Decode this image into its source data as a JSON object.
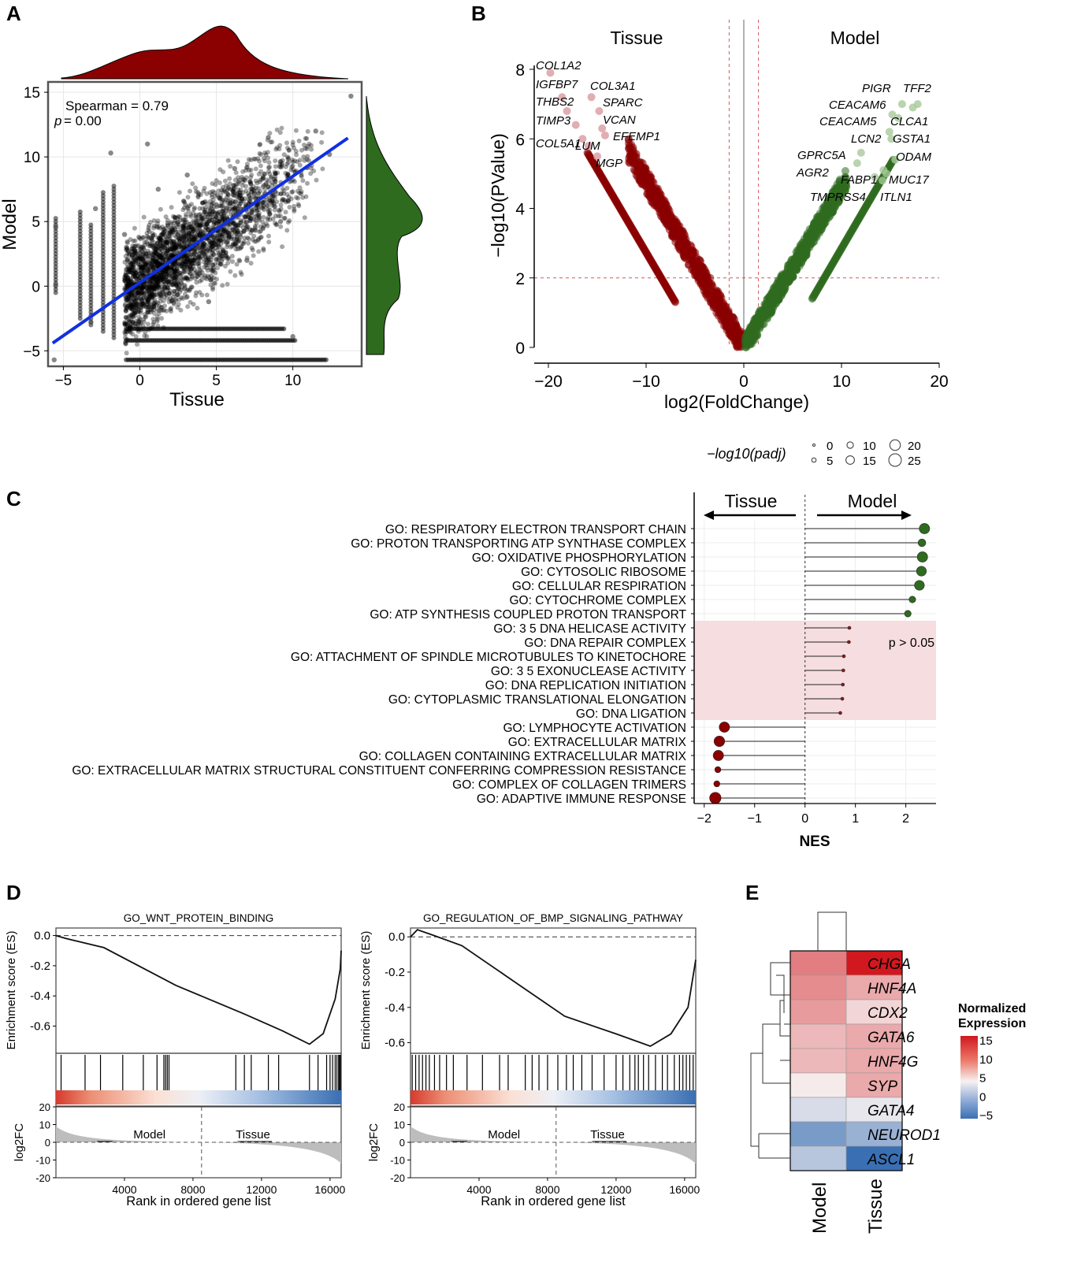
{
  "panels": {
    "a": "A",
    "b": "B",
    "c": "C",
    "d": "D",
    "e": "E"
  },
  "colors": {
    "tissue": "#8b0000",
    "model": "#2f6b1f",
    "fit": "#1030e0",
    "ns": "#f6dde0",
    "hot": "#d0181e",
    "cold": "#3a6fb3"
  },
  "chart_data": [
    {
      "id": "A",
      "type": "scatter",
      "xlabel": "Tissue",
      "ylabel": "Model",
      "xlim": [
        -6,
        14.5
      ],
      "ylim": [
        -6.2,
        15.8
      ],
      "xticks": [
        -5,
        0,
        5,
        10
      ],
      "yticks": [
        -5,
        0,
        5,
        10,
        15
      ],
      "annotation": {
        "text": "Spearman = 0.79",
        "p_label": "p",
        "p_value": "= 0.00"
      },
      "regression": {
        "intercept": 0.28,
        "slope": 0.822
      },
      "sample_points": [
        [
          -5.6,
          -5.7
        ],
        [
          -5.5,
          0.1
        ],
        [
          -5.5,
          4.6
        ],
        [
          -3.2,
          -2.8
        ],
        [
          -2.9,
          6.0
        ],
        [
          -1.9,
          10.3
        ],
        [
          -1.0,
          4.0
        ],
        [
          0.5,
          11.0
        ],
        [
          1.2,
          7.5
        ],
        [
          2.0,
          1.1
        ],
        [
          3.1,
          8.6
        ],
        [
          3.8,
          3.0
        ],
        [
          4.5,
          -1.2
        ],
        [
          5.0,
          6.3
        ],
        [
          6.2,
          9.1
        ],
        [
          7.0,
          2.0
        ],
        [
          8.4,
          11.5
        ],
        [
          9.2,
          5.0
        ],
        [
          10.0,
          -3.9
        ],
        [
          11.5,
          12.0
        ],
        [
          12.4,
          10.2
        ],
        [
          13.8,
          14.7
        ]
      ],
      "floor_levels": [
        -3.3,
        -4.2,
        -5.7
      ],
      "top_density_label": "Tissue density",
      "right_density_label": "Model density"
    },
    {
      "id": "B",
      "type": "scatter",
      "xlabel": "log2(FoldChange)",
      "ylabel": "−log10(PValue)",
      "xlim": [
        -20,
        20
      ],
      "ylim": [
        0,
        8
      ],
      "xticks": [
        -20,
        -10,
        0,
        10,
        20
      ],
      "xtick_labels": [
        "−20",
        "−10",
        "0",
        "10",
        "20"
      ],
      "yticks": [
        0,
        2,
        4,
        6,
        8
      ],
      "group_labels": [
        "Tissue",
        "Model"
      ],
      "thresholds": {
        "fc": 1.5,
        "pvalue": 2
      },
      "labels_tissue": [
        {
          "gene": "COL1A2",
          "x": -19.8,
          "y": 7.9
        },
        {
          "gene": "IGFBP7",
          "x": -18.6,
          "y": 7.2
        },
        {
          "gene": "THBS2",
          "x": -18.1,
          "y": 6.8
        },
        {
          "gene": "TIMP3",
          "x": -17.2,
          "y": 6.4
        },
        {
          "gene": "COL5A1",
          "x": -16.5,
          "y": 6.0
        },
        {
          "gene": "LUM",
          "x": -15.9,
          "y": 5.8
        },
        {
          "gene": "MGP",
          "x": -15.0,
          "y": 5.5
        },
        {
          "gene": "COL3A1",
          "x": -15.6,
          "y": 7.2
        },
        {
          "gene": "SPARC",
          "x": -14.8,
          "y": 6.8
        },
        {
          "gene": "VCAN",
          "x": -14.5,
          "y": 6.3
        },
        {
          "gene": "EFEMP1",
          "x": -14.2,
          "y": 6.1
        }
      ],
      "labels_model": [
        {
          "gene": "PIGR",
          "x": 16.2,
          "y": 7.0
        },
        {
          "gene": "TFF2",
          "x": 17.8,
          "y": 7.0
        },
        {
          "gene": "CEACAM6",
          "x": 17.3,
          "y": 6.9
        },
        {
          "gene": "CEACAM5",
          "x": 15.2,
          "y": 6.7
        },
        {
          "gene": "CLCA1",
          "x": 15.8,
          "y": 6.6
        },
        {
          "gene": "LCN2",
          "x": 14.9,
          "y": 6.2
        },
        {
          "gene": "GSTA1",
          "x": 15.1,
          "y": 6.0
        },
        {
          "gene": "GPRC5A",
          "x": 12.0,
          "y": 5.6
        },
        {
          "gene": "ODAM",
          "x": 15.5,
          "y": 5.4
        },
        {
          "gene": "AGR2",
          "x": 11.6,
          "y": 5.3
        },
        {
          "gene": "FABP1",
          "x": 14.3,
          "y": 5.1
        },
        {
          "gene": "MUC17",
          "x": 14.6,
          "y": 5.0
        },
        {
          "gene": "TMPRSS4",
          "x": 13.4,
          "y": 4.9
        },
        {
          "gene": "ITLN1",
          "x": 14.2,
          "y": 4.8
        }
      ]
    },
    {
      "id": "C",
      "type": "lollipop",
      "xlabel": "NES",
      "xlim": [
        -2.2,
        2.6
      ],
      "xticks": [
        -2,
        -1,
        0,
        1,
        2
      ],
      "xtick_labels": [
        "−2",
        "−1",
        "0",
        "1",
        "2"
      ],
      "direction_labels": [
        "Tissue",
        "Model"
      ],
      "ns_label": "p > 0.05",
      "size_legend": {
        "title": "−log10(padj)",
        "values": [
          0,
          5,
          10,
          15,
          20,
          25
        ]
      },
      "terms": [
        {
          "name": "GO: RESPIRATORY ELECTRON TRANSPORT CHAIN",
          "nes": 2.37,
          "padj": 24,
          "sig": true
        },
        {
          "name": "GO: PROTON TRANSPORTING ATP SYNTHASE COMPLEX",
          "nes": 2.32,
          "padj": 14,
          "sig": true
        },
        {
          "name": "GO: OXIDATIVE PHOSPHORYLATION",
          "nes": 2.33,
          "padj": 24,
          "sig": true
        },
        {
          "name": "GO: CYTOSOLIC RIBOSOME",
          "nes": 2.31,
          "padj": 22,
          "sig": true
        },
        {
          "name": "GO: CELLULAR RESPIRATION",
          "nes": 2.27,
          "padj": 22,
          "sig": true
        },
        {
          "name": "GO: CYTOCHROME COMPLEX",
          "nes": 2.13,
          "padj": 10,
          "sig": true
        },
        {
          "name": "GO: ATP SYNTHESIS COUPLED PROTON TRANSPORT",
          "nes": 2.04,
          "padj": 10,
          "sig": true
        },
        {
          "name": "GO: 3 5 DNA HELICASE ACTIVITY",
          "nes": 0.88,
          "padj": 2,
          "sig": false
        },
        {
          "name": "GO: DNA REPAIR COMPLEX",
          "nes": 0.87,
          "padj": 2,
          "sig": false
        },
        {
          "name": "GO: ATTACHMENT OF SPINDLE MICROTUBULES TO KINETOCHORE",
          "nes": 0.77,
          "padj": 2,
          "sig": false
        },
        {
          "name": "GO: 3 5 EXONUCLEASE ACTIVITY",
          "nes": 0.76,
          "padj": 2,
          "sig": false
        },
        {
          "name": "GO: DNA REPLICATION INITIATION",
          "nes": 0.75,
          "padj": 2,
          "sig": false
        },
        {
          "name": "GO: CYTOPLASMIC TRANSLATIONAL ELONGATION",
          "nes": 0.74,
          "padj": 2,
          "sig": false
        },
        {
          "name": "GO: DNA LIGATION",
          "nes": 0.7,
          "padj": 2,
          "sig": false
        },
        {
          "name": "GO: LYMPHOCYTE ACTIVATION",
          "nes": -1.6,
          "padj": 24,
          "sig": true
        },
        {
          "name": "GO: EXTRACELLULAR MATRIX",
          "nes": -1.7,
          "padj": 25,
          "sig": true
        },
        {
          "name": "GO: COLLAGEN CONTAINING EXTRACELLULAR MATRIX",
          "nes": -1.72,
          "padj": 24,
          "sig": true
        },
        {
          "name": "GO: EXTRACELLULAR MATRIX STRUCTURAL CONSTITUENT CONFERRING COMPRESSION RESISTANCE",
          "nes": -1.73,
          "padj": 8,
          "sig": true
        },
        {
          "name": "GO: COMPLEX OF COLLAGEN TRIMERS",
          "nes": -1.75,
          "padj": 8,
          "sig": true
        },
        {
          "name": "GO: ADAPTIVE IMMUNE RESPONSE",
          "nes": -1.78,
          "padj": 28,
          "sig": true
        }
      ]
    },
    {
      "id": "D1",
      "type": "line",
      "title": "GO_WNT_PROTEIN_BINDING",
      "ylabel": "Enrichment score (ES)",
      "ylim": [
        -0.78,
        0.05
      ],
      "yticks": [
        0.0,
        -0.2,
        -0.4,
        -0.6
      ],
      "ytick_labels": [
        "0.0",
        "-0.2",
        "-0.4",
        "-0.6"
      ],
      "es": [
        [
          0,
          0
        ],
        [
          600,
          -0.02
        ],
        [
          2800,
          -0.08
        ],
        [
          7000,
          -0.33
        ],
        [
          11000,
          -0.52
        ],
        [
          13200,
          -0.63
        ],
        [
          14800,
          -0.72
        ],
        [
          15600,
          -0.65
        ],
        [
          16300,
          -0.42
        ],
        [
          16600,
          -0.22
        ],
        [
          16650,
          -0.1
        ]
      ],
      "hits": [
        300,
        1700,
        2600,
        3900,
        5100,
        5900,
        6300,
        6400,
        6500,
        6600,
        10500,
        11000,
        11400,
        12400,
        13000,
        14800,
        15300,
        15800,
        16000,
        16150,
        16300,
        16400,
        16500,
        16550,
        16600
      ],
      "ranked_ylabel": "log2FC",
      "ranked_yticks": [
        20,
        10,
        0,
        -10,
        -20
      ],
      "xticks": [
        4000,
        8000,
        12000,
        16000
      ],
      "xlabel": "Rank in ordered gene list",
      "group_left": "Model",
      "group_right": "Tissue",
      "zero_cross": 8500
    },
    {
      "id": "D2",
      "type": "line",
      "title": "GO_REGULATION_OF_BMP_SIGNALING_PATHWAY",
      "ylabel": "Enrichment score (ES)",
      "ylim": [
        -0.66,
        0.05
      ],
      "yticks": [
        0.0,
        -0.2,
        -0.4,
        -0.6
      ],
      "ytick_labels": [
        "0.0",
        "-0.2",
        "-0.4",
        "-0.6"
      ],
      "es": [
        [
          0,
          0
        ],
        [
          400,
          0.04
        ],
        [
          1300,
          0.01
        ],
        [
          3000,
          -0.05
        ],
        [
          6000,
          -0.25
        ],
        [
          9000,
          -0.45
        ],
        [
          12000,
          -0.55
        ],
        [
          14000,
          -0.62
        ],
        [
          15200,
          -0.55
        ],
        [
          16200,
          -0.4
        ],
        [
          16650,
          -0.13
        ]
      ],
      "hits": [
        100,
        300,
        500,
        700,
        900,
        1100,
        1400,
        1700,
        2100,
        2500,
        3300,
        4200,
        5200,
        5700,
        6700,
        7100,
        7500,
        8000,
        8600,
        9100,
        9500,
        10000,
        10600,
        11300,
        12000,
        12400,
        12800,
        13100,
        13300,
        13600,
        13900,
        14300,
        14700,
        15000,
        15400,
        15700,
        15900,
        16100,
        16300,
        16500
      ],
      "ranked_ylabel": "log2FC",
      "ranked_yticks": [
        20,
        10,
        0,
        -10,
        -20
      ],
      "xticks": [
        4000,
        8000,
        12000,
        16000
      ],
      "xlabel": "Rank in ordered gene list",
      "group_left": "Model",
      "group_right": "Tissue",
      "zero_cross": 8500
    },
    {
      "id": "E",
      "type": "heatmap",
      "rows": [
        "CHGA",
        "HNF4A",
        "CDX2",
        "GATA6",
        "HNF4G",
        "SYP",
        "GATA4",
        "NEUROD1",
        "ASCL1"
      ],
      "columns": [
        "Model",
        "Tissue"
      ],
      "values": [
        [
          8,
          15
        ],
        [
          7,
          5
        ],
        [
          6,
          2
        ],
        [
          4,
          5
        ],
        [
          4,
          5
        ],
        [
          0.5,
          5
        ],
        [
          -1,
          -0.5
        ],
        [
          -4,
          -3
        ],
        [
          -2,
          -6
        ]
      ],
      "legend_title": "Normalized Expression",
      "legend_ticks": [
        15,
        10,
        5,
        0,
        -5
      ],
      "legend_tick_labels": [
        "15",
        "10",
        "5",
        "0",
        "−5"
      ]
    }
  ]
}
